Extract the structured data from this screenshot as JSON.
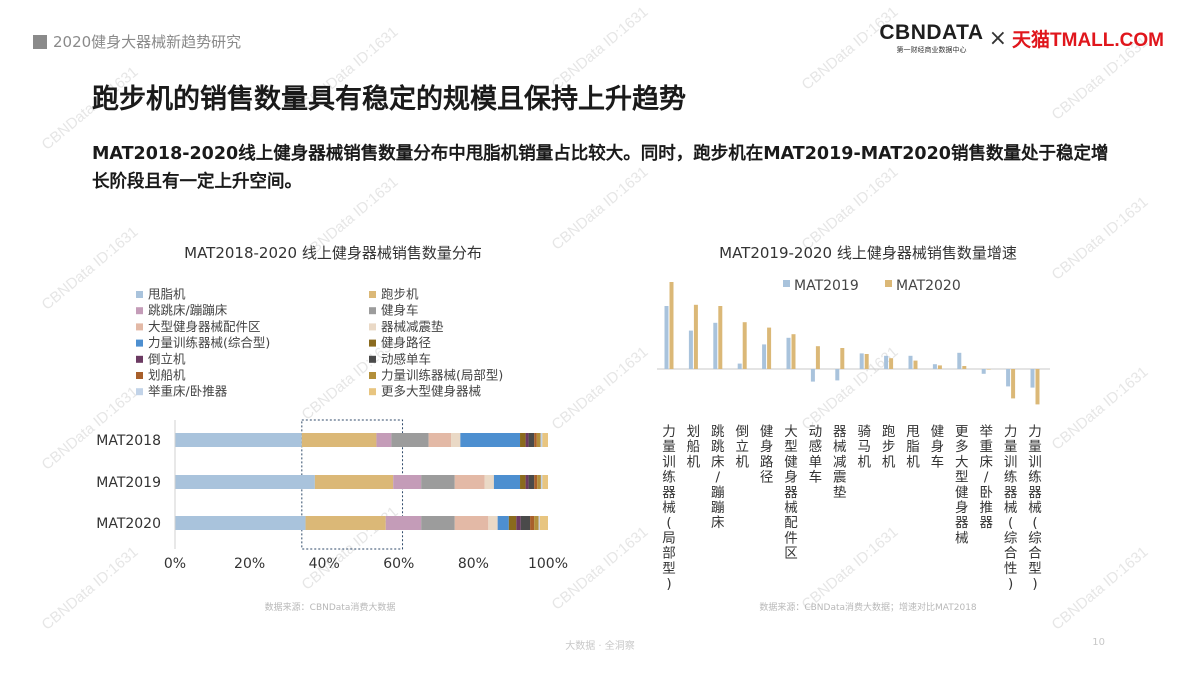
{
  "header": {
    "section_title": "2020健身大器械新趋势研究"
  },
  "brand": {
    "cbn_logo": "CBNDATA",
    "cbn_sub": "第一财经商业数据中心",
    "times": "×",
    "tmall": "天猫TMALL.COM"
  },
  "main": {
    "title": "跑步机的销售数量具有稳定的规模且保持上升趋势",
    "description": "MAT2018-2020线上健身器械销售数量分布中甩脂机销量占比较大。同时，跑步机在MAT2019-MAT2020销售数量处于稳定增长阶段且有一定上升空间。"
  },
  "watermark": "CBNData ID:1631",
  "footer": {
    "text": "大数据 · 全洞察",
    "page": "10"
  },
  "colors": {
    "甩脂机": "#a9c3dc",
    "跑步机": "#dbb877",
    "跳跳床/蹦蹦床": "#c49cb8",
    "健身车": "#9c9c9c",
    "大型健身器械配件区": "#e3b9a6",
    "器械减震垫": "#ead9c6",
    "力量训练器械(综合型)": "#4d8fd0",
    "健身路径": "#8a6a1e",
    "倒立机": "#6b3a62",
    "动感单车": "#4a4a4a",
    "划船机": "#a85f2a",
    "力量训练器械(局部型)": "#b38f3a",
    "举重床/卧推器": "#c2d3e8",
    "更多大型健身器械": "#e8c580",
    "mat2019": "#a9c3dc",
    "mat2020": "#dbb877"
  },
  "chart_data": [
    {
      "type": "bar",
      "orientation": "horizontal",
      "stacked": "percent",
      "title": "MAT2018-2020 线上健身器械销售数量分布",
      "categories": [
        "MAT2018",
        "MAT2019",
        "MAT2020"
      ],
      "xlim": [
        0,
        100
      ],
      "x_ticks": [
        "0%",
        "20%",
        "40%",
        "60%",
        "80%",
        "100%"
      ],
      "legend_position": "top",
      "highlight_range": [
        34,
        61
      ],
      "series": [
        {
          "name": "甩脂机",
          "values": [
            34.0,
            37.5,
            35.0
          ]
        },
        {
          "name": "跑步机",
          "values": [
            20.0,
            21.0,
            21.5
          ]
        },
        {
          "name": "跳跳床/蹦蹦床",
          "values": [
            4.0,
            7.5,
            9.5
          ]
        },
        {
          "name": "健身车",
          "values": [
            10.0,
            9.0,
            9.0
          ]
        },
        {
          "name": "大型健身器械配件区",
          "values": [
            6.0,
            8.0,
            9.0
          ]
        },
        {
          "name": "器械减震垫",
          "values": [
            2.5,
            2.5,
            2.5
          ]
        },
        {
          "name": "力量训练器械(综合型)",
          "values": [
            16.0,
            7.0,
            3.0
          ]
        },
        {
          "name": "健身路径",
          "values": [
            1.5,
            1.5,
            2.0
          ]
        },
        {
          "name": "倒立机",
          "values": [
            0.8,
            0.8,
            1.2
          ]
        },
        {
          "name": "动感单车",
          "values": [
            1.5,
            1.5,
            2.5
          ]
        },
        {
          "name": "划船机",
          "values": [
            0.7,
            0.8,
            1.1
          ]
        },
        {
          "name": "力量训练器械(局部型)",
          "values": [
            1.0,
            1.0,
            1.2
          ]
        },
        {
          "name": "举重床/卧推器",
          "values": [
            0.5,
            0.4,
            0.3
          ]
        },
        {
          "name": "更多大型健身器械",
          "values": [
            1.5,
            1.5,
            2.2
          ]
        }
      ],
      "source": "数据来源：CBNData消费大数据"
    },
    {
      "type": "bar",
      "orientation": "vertical",
      "title": "MAT2019-2020 线上健身器械销售数量增速",
      "categories": [
        "力量训练器械(局部型)",
        "划船机",
        "跳跳床/蹦蹦床",
        "倒立机",
        "健身路径",
        "大型健身器械配件区",
        "动感单车",
        "器械减震垫",
        "骑马机",
        "跑步机",
        "甩脂机",
        "健身车",
        "更多大型健身器械",
        "举重床/卧推器",
        "力量训练器械(综合性)",
        "力量训练器械(综合型)"
      ],
      "legend_position": "top",
      "series": [
        {
          "name": "MAT2019",
          "values": [
            105,
            64,
            77,
            9,
            41,
            52,
            -21,
            -19,
            26,
            22,
            22,
            8,
            27,
            -8,
            -29,
            -31
          ]
        },
        {
          "name": "MAT2020",
          "values": [
            145,
            107,
            105,
            78,
            69,
            58,
            38,
            35,
            25,
            18,
            14,
            6,
            5,
            -1,
            -49,
            -59
          ]
        }
      ],
      "source": "数据来源：CBNData消费大数据；增速对比MAT2018"
    }
  ]
}
